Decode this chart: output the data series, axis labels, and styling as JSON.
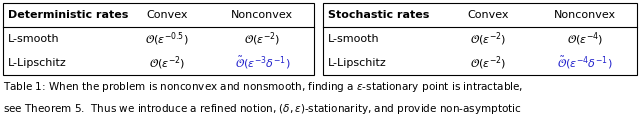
{
  "figsize": [
    6.4,
    1.22
  ],
  "dpi": 100,
  "background_color": "#ffffff",
  "left_table": {
    "header_col0": "Deterministic rates",
    "header_col1": "Convex",
    "header_col2": "Nonconvex",
    "rows": [
      [
        "L-smooth",
        "$\\mathcal{O}(\\epsilon^{-0.5})$",
        "$\\mathcal{O}(\\epsilon^{-2})$",
        "black"
      ],
      [
        "L-Lipschitz",
        "$\\mathcal{O}(\\epsilon^{-2})$",
        "$\\tilde{\\mathcal{O}}(\\epsilon^{-3}\\delta^{-1})$",
        "blue"
      ]
    ]
  },
  "right_table": {
    "header_col0": "Stochastic rates",
    "header_col1": "Convex",
    "header_col2": "Nonconvex",
    "rows": [
      [
        "L-smooth",
        "$\\mathcal{O}(\\epsilon^{-2})$",
        "$\\mathcal{O}(\\epsilon^{-4})$",
        "black"
      ],
      [
        "L-Lipschitz",
        "$\\mathcal{O}(\\epsilon^{-2})$",
        "$\\tilde{\\mathcal{O}}(\\epsilon^{-4}\\delta^{-1})$",
        "blue"
      ]
    ]
  },
  "normal_color": "#000000",
  "blue_color": "#2222cc",
  "header_fontsize": 8.0,
  "cell_fontsize": 8.0,
  "caption_fontsize": 7.5,
  "caption_line1": "Table 1: When the problem is nonconvex and nonsmooth, finding a $\\epsilon$-stationary point is intractable,",
  "caption_line2": "see Theorem 5.  Thus we introduce a refined notion, $(\\delta, \\epsilon)$-stationarity, and provide non-asymptotic"
}
